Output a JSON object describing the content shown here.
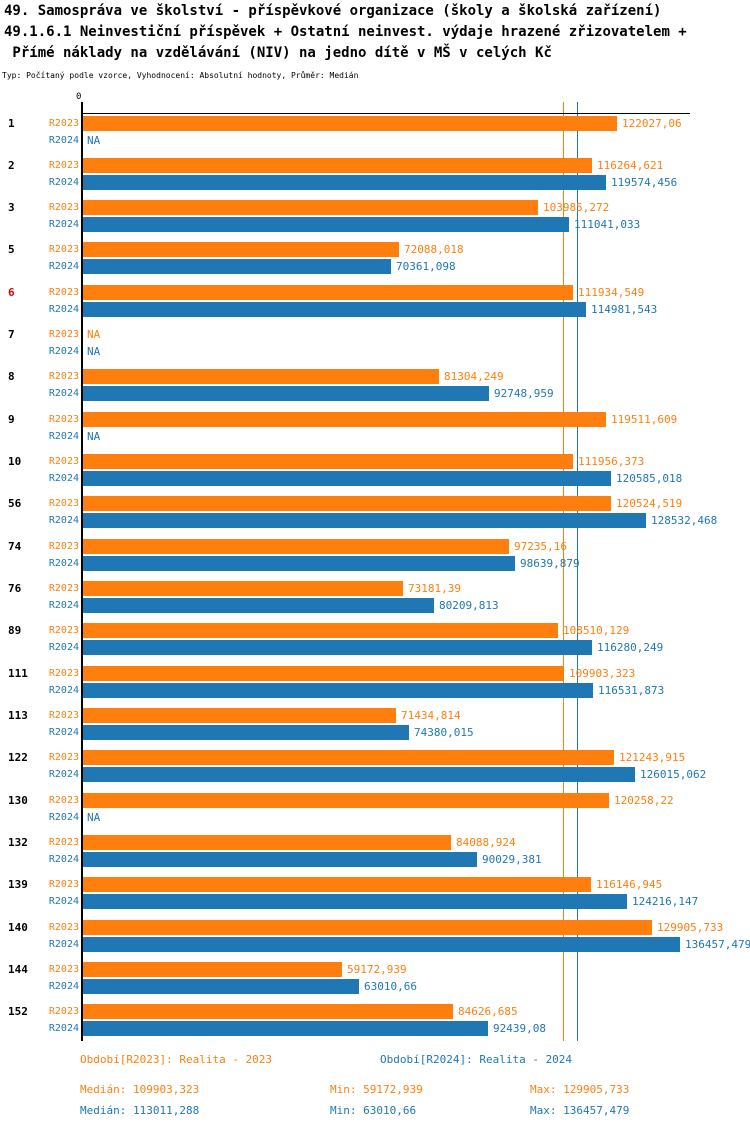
{
  "header": {
    "title_line1": "49. Samospráva ve školství - příspěvkové organizace (školy a školská zařízení)",
    "title_line2": "49.1.6.1 Neinvestiční příspěvek + Ostatní neinvest. výdaje hrazené zřizovatelem +",
    "title_line3": " Přímé náklady na vzdělávání (NIV) na jedno dítě v MŠ v celých Kč",
    "meta_line": "Typ: Počítaný podle vzorce, Vyhodnocení: Absolutní hodnoty, Průměr: Medián"
  },
  "chart_data": {
    "type": "bar",
    "orientation": "horizontal",
    "grid": false,
    "axis": {
      "zero_tick_label": "0",
      "x_min": 0,
      "x_max": 138000
    },
    "series_names": [
      "R2023",
      "R2024"
    ],
    "na_label": "NA",
    "colors": {
      "r2023": "#ff7f0e",
      "r2024": "#1f77b4",
      "highlight_row_id": "#e00000"
    },
    "median_lines": {
      "r2023": 109903.323,
      "r2024": 113011.288
    },
    "rows": [
      {
        "id": "1",
        "highlight": false,
        "v2023": 122027.06,
        "l2023": "122027,06",
        "v2024": null,
        "l2024": "NA"
      },
      {
        "id": "2",
        "highlight": false,
        "v2023": 116264.621,
        "l2023": "116264,621",
        "v2024": 119574.456,
        "l2024": "119574,456"
      },
      {
        "id": "3",
        "highlight": false,
        "v2023": 103985.272,
        "l2023": "103985,272",
        "v2024": 111041.033,
        "l2024": "111041,033"
      },
      {
        "id": "5",
        "highlight": false,
        "v2023": 72088.018,
        "l2023": "72088,018",
        "v2024": 70361.098,
        "l2024": "70361,098"
      },
      {
        "id": "6",
        "highlight": true,
        "v2023": 111934.549,
        "l2023": "111934,549",
        "v2024": 114981.543,
        "l2024": "114981,543"
      },
      {
        "id": "7",
        "highlight": false,
        "v2023": null,
        "l2023": "NA",
        "v2024": null,
        "l2024": "NA"
      },
      {
        "id": "8",
        "highlight": false,
        "v2023": 81304.249,
        "l2023": "81304,249",
        "v2024": 92748.959,
        "l2024": "92748,959"
      },
      {
        "id": "9",
        "highlight": false,
        "v2023": 119511.609,
        "l2023": "119511,609",
        "v2024": null,
        "l2024": "NA"
      },
      {
        "id": "10",
        "highlight": false,
        "v2023": 111956.373,
        "l2023": "111956,373",
        "v2024": 120585.018,
        "l2024": "120585,018"
      },
      {
        "id": "56",
        "highlight": false,
        "v2023": 120524.519,
        "l2023": "120524,519",
        "v2024": 128532.468,
        "l2024": "128532,468"
      },
      {
        "id": "74",
        "highlight": false,
        "v2023": 97235.16,
        "l2023": "97235,16",
        "v2024": 98639.879,
        "l2024": "98639,879"
      },
      {
        "id": "76",
        "highlight": false,
        "v2023": 73181.39,
        "l2023": "73181,39",
        "v2024": 80209.813,
        "l2024": "80209,813"
      },
      {
        "id": "89",
        "highlight": false,
        "v2023": 108510.129,
        "l2023": "108510,129",
        "v2024": 116280.249,
        "l2024": "116280,249"
      },
      {
        "id": "111",
        "highlight": false,
        "v2023": 109903.323,
        "l2023": "109903,323",
        "v2024": 116531.873,
        "l2024": "116531,873"
      },
      {
        "id": "113",
        "highlight": false,
        "v2023": 71434.814,
        "l2023": "71434,814",
        "v2024": 74380.015,
        "l2024": "74380,015"
      },
      {
        "id": "122",
        "highlight": false,
        "v2023": 121243.915,
        "l2023": "121243,915",
        "v2024": 126015.062,
        "l2024": "126015,062"
      },
      {
        "id": "130",
        "highlight": false,
        "v2023": 120258.22,
        "l2023": "120258,22",
        "v2024": null,
        "l2024": "NA"
      },
      {
        "id": "132",
        "highlight": false,
        "v2023": 84088.924,
        "l2023": "84088,924",
        "v2024": 90029.381,
        "l2024": "90029,381"
      },
      {
        "id": "139",
        "highlight": false,
        "v2023": 116146.945,
        "l2023": "116146,945",
        "v2024": 124216.147,
        "l2024": "124216,147"
      },
      {
        "id": "140",
        "highlight": false,
        "v2023": 129905.733,
        "l2023": "129905,733",
        "v2024": 136457.479,
        "l2024": "136457,479"
      },
      {
        "id": "144",
        "highlight": false,
        "v2023": 59172.939,
        "l2023": "59172,939",
        "v2024": 63010.66,
        "l2024": "63010,66"
      },
      {
        "id": "152",
        "highlight": false,
        "v2023": 84626.685,
        "l2023": "84626,685",
        "v2024": 92439.08,
        "l2024": "92439,08"
      }
    ]
  },
  "legend": {
    "r2023": "Období[R2023]: Realita - 2023",
    "r2024": "Období[R2024]: Realita - 2024"
  },
  "stats": {
    "r2023": {
      "median": "Medián: 109903,323",
      "min": "Min: 59172,939",
      "max": "Max: 129905,733"
    },
    "r2024": {
      "median": "Medián: 113011,288",
      "min": "Min: 63010,66",
      "max": "Max: 136457,479"
    }
  }
}
